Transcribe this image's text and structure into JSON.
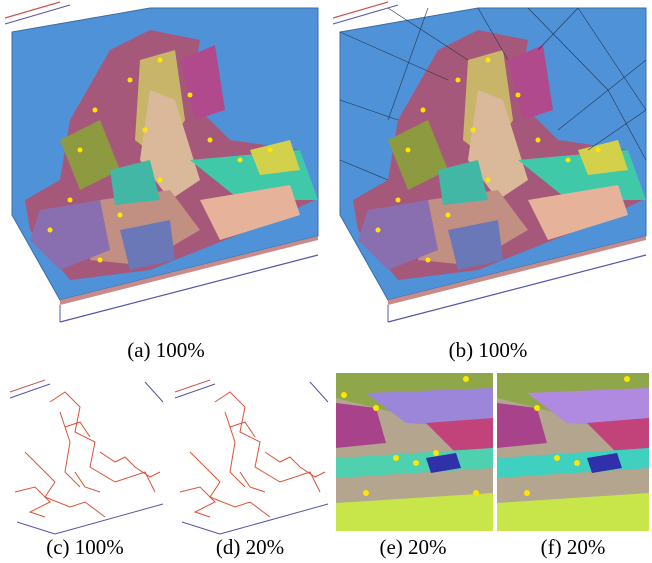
{
  "captions": [
    "(a) 100%",
    "(b) 100%",
    "(c) 100%",
    "(d) 20%",
    "(e) 20%",
    "(f) 20%"
  ]
}
